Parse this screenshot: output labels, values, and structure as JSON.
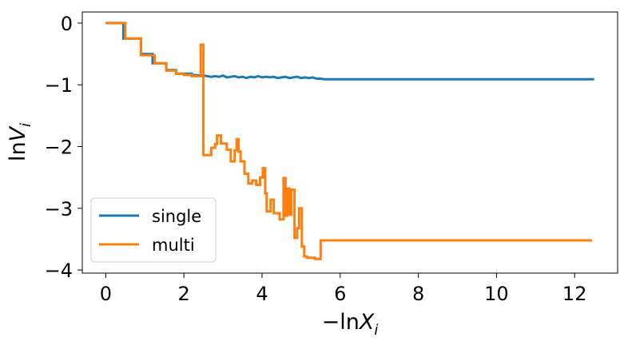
{
  "chart_data": {
    "type": "line",
    "xlabel": {
      "prefix": "−ln",
      "var": "X",
      "sub": "i"
    },
    "ylabel": {
      "prefix": "ln",
      "var": "V",
      "sub": "i"
    },
    "xlim": [
      -0.6,
      13.1
    ],
    "ylim": [
      -4.05,
      0.18
    ],
    "xticks": [
      0,
      2,
      4,
      6,
      8,
      10,
      12
    ],
    "yticks": [
      0,
      -1,
      -2,
      -3,
      -4
    ],
    "xtick_labels": [
      "0",
      "2",
      "4",
      "6",
      "8",
      "10",
      "12"
    ],
    "ytick_labels": [
      "0",
      "−1",
      "−2",
      "−3",
      "−4"
    ],
    "grid": false,
    "legend_position": "lower-left",
    "series": [
      {
        "name": "single",
        "color": "#1f77b4",
        "points": [
          [
            0,
            0
          ],
          [
            0.45,
            0
          ],
          [
            0.45,
            -0.25
          ],
          [
            0.9,
            -0.25
          ],
          [
            0.9,
            -0.5
          ],
          [
            1.2,
            -0.5
          ],
          [
            1.2,
            -0.65
          ],
          [
            1.55,
            -0.65
          ],
          [
            1.55,
            -0.76
          ],
          [
            1.8,
            -0.76
          ],
          [
            1.8,
            -0.82
          ],
          [
            2.2,
            -0.82
          ],
          [
            2.2,
            -0.84
          ],
          [
            2.5,
            -0.85
          ],
          [
            2.6,
            -0.86
          ],
          [
            2.7,
            -0.87
          ],
          [
            2.8,
            -0.86
          ],
          [
            2.9,
            -0.87
          ],
          [
            3.0,
            -0.85
          ],
          [
            3.1,
            -0.88
          ],
          [
            3.2,
            -0.87
          ],
          [
            3.3,
            -0.86
          ],
          [
            3.4,
            -0.88
          ],
          [
            3.5,
            -0.87
          ],
          [
            3.6,
            -0.89
          ],
          [
            3.7,
            -0.87
          ],
          [
            3.8,
            -0.88
          ],
          [
            3.9,
            -0.86
          ],
          [
            4.0,
            -0.88
          ],
          [
            4.1,
            -0.87
          ],
          [
            4.2,
            -0.88
          ],
          [
            4.3,
            -0.87
          ],
          [
            4.4,
            -0.89
          ],
          [
            4.5,
            -0.88
          ],
          [
            4.6,
            -0.87
          ],
          [
            4.7,
            -0.89
          ],
          [
            4.8,
            -0.88
          ],
          [
            4.9,
            -0.87
          ],
          [
            5.0,
            -0.89
          ],
          [
            5.1,
            -0.88
          ],
          [
            5.2,
            -0.89
          ],
          [
            5.3,
            -0.88
          ],
          [
            5.4,
            -0.9
          ],
          [
            5.5,
            -0.9
          ],
          [
            5.6,
            -0.91
          ],
          [
            12.5,
            -0.91
          ]
        ]
      },
      {
        "name": "multi",
        "color": "#ff7f0e",
        "points": [
          [
            0,
            0
          ],
          [
            0.5,
            0
          ],
          [
            0.5,
            -0.25
          ],
          [
            0.9,
            -0.25
          ],
          [
            0.9,
            -0.52
          ],
          [
            1.25,
            -0.52
          ],
          [
            1.25,
            -0.65
          ],
          [
            1.55,
            -0.65
          ],
          [
            1.55,
            -0.77
          ],
          [
            1.8,
            -0.77
          ],
          [
            1.8,
            -0.82
          ],
          [
            2.0,
            -0.82
          ],
          [
            2.0,
            -0.84
          ],
          [
            2.2,
            -0.84
          ],
          [
            2.2,
            -0.86
          ],
          [
            2.43,
            -0.86
          ],
          [
            2.43,
            -0.35
          ],
          [
            2.5,
            -0.35
          ],
          [
            2.5,
            -2.14
          ],
          [
            2.7,
            -2.14
          ],
          [
            2.7,
            -2.02
          ],
          [
            2.8,
            -2.02
          ],
          [
            2.8,
            -1.96
          ],
          [
            2.85,
            -1.96
          ],
          [
            2.85,
            -1.82
          ],
          [
            2.95,
            -1.82
          ],
          [
            2.95,
            -1.95
          ],
          [
            3.1,
            -1.95
          ],
          [
            3.1,
            -2.05
          ],
          [
            3.2,
            -2.05
          ],
          [
            3.2,
            -2.24
          ],
          [
            3.3,
            -2.24
          ],
          [
            3.3,
            -2.06
          ],
          [
            3.35,
            -2.06
          ],
          [
            3.35,
            -1.88
          ],
          [
            3.4,
            -1.88
          ],
          [
            3.4,
            -2.08
          ],
          [
            3.45,
            -2.08
          ],
          [
            3.45,
            -2.24
          ],
          [
            3.55,
            -2.24
          ],
          [
            3.55,
            -2.44
          ],
          [
            3.65,
            -2.44
          ],
          [
            3.65,
            -2.6
          ],
          [
            3.75,
            -2.6
          ],
          [
            3.75,
            -2.55
          ],
          [
            3.85,
            -2.55
          ],
          [
            3.85,
            -2.62
          ],
          [
            3.95,
            -2.62
          ],
          [
            3.95,
            -2.5
          ],
          [
            4.02,
            -2.5
          ],
          [
            4.02,
            -2.35
          ],
          [
            4.08,
            -2.35
          ],
          [
            4.08,
            -2.76
          ],
          [
            4.12,
            -2.76
          ],
          [
            4.12,
            -3.05
          ],
          [
            4.22,
            -3.05
          ],
          [
            4.22,
            -2.86
          ],
          [
            4.3,
            -2.86
          ],
          [
            4.3,
            -3.08
          ],
          [
            4.45,
            -3.08
          ],
          [
            4.45,
            -3.18
          ],
          [
            4.55,
            -3.18
          ],
          [
            4.55,
            -2.51
          ],
          [
            4.6,
            -2.51
          ],
          [
            4.6,
            -3.12
          ],
          [
            4.65,
            -3.12
          ],
          [
            4.65,
            -2.68
          ],
          [
            4.7,
            -2.68
          ],
          [
            4.7,
            -3.1
          ],
          [
            4.75,
            -3.1
          ],
          [
            4.75,
            -2.7
          ],
          [
            4.83,
            -2.7
          ],
          [
            4.83,
            -3.48
          ],
          [
            4.9,
            -3.48
          ],
          [
            4.9,
            -3.32
          ],
          [
            4.95,
            -3.32
          ],
          [
            4.95,
            -3.0
          ],
          [
            5.02,
            -3.0
          ],
          [
            5.02,
            -3.62
          ],
          [
            5.08,
            -3.62
          ],
          [
            5.08,
            -3.78
          ],
          [
            5.15,
            -3.78
          ],
          [
            5.15,
            -3.8
          ],
          [
            5.35,
            -3.8
          ],
          [
            5.35,
            -3.82
          ],
          [
            5.5,
            -3.82
          ],
          [
            5.5,
            -3.52
          ],
          [
            12.45,
            -3.52
          ]
        ]
      }
    ]
  }
}
